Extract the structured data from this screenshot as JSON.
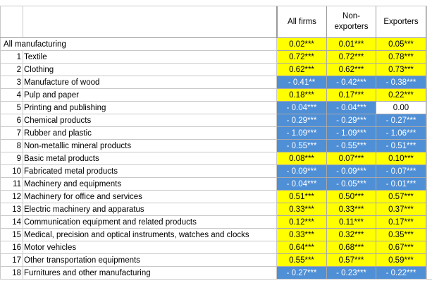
{
  "columns": [
    "All firms",
    "Non-exporters",
    "Exporters"
  ],
  "header_lines": {
    "all_firms": [
      "All firms"
    ],
    "non_exporters": [
      "Non-",
      "exporters"
    ],
    "exporters": [
      "Exporters"
    ]
  },
  "all_manufacturing": {
    "label": "All manufacturing",
    "values": [
      "0.02***",
      "0.01***",
      "0.05***"
    ],
    "signs": [
      "pos",
      "pos",
      "pos"
    ]
  },
  "rows": [
    {
      "num": "1",
      "label": "Textile",
      "values": [
        "0.72***",
        "0.72***",
        "0.78***"
      ],
      "signs": [
        "pos",
        "pos",
        "pos"
      ]
    },
    {
      "num": "2",
      "label": "Clothing",
      "values": [
        "0.62***",
        "0.62***",
        "0.73***"
      ],
      "signs": [
        "pos",
        "pos",
        "pos"
      ]
    },
    {
      "num": "3",
      "label": "Manufacture of wood",
      "values": [
        "- 0.41**",
        "- 0.42***",
        "- 0.38***"
      ],
      "signs": [
        "neg",
        "neg",
        "neg"
      ]
    },
    {
      "num": "4",
      "label": "Pulp and paper",
      "values": [
        "0.18***",
        "0.17***",
        "0.22***"
      ],
      "signs": [
        "pos",
        "pos",
        "pos"
      ]
    },
    {
      "num": "5",
      "label": "Printing and publishing",
      "values": [
        "- 0.04***",
        "- 0.04***",
        "0.00"
      ],
      "signs": [
        "neg",
        "neg",
        "zero"
      ]
    },
    {
      "num": "6",
      "label": "Chemical products",
      "values": [
        "- 0.29***",
        "- 0.29***",
        "- 0.27***"
      ],
      "signs": [
        "neg",
        "neg",
        "neg"
      ]
    },
    {
      "num": "7",
      "label": "Rubber and plastic",
      "values": [
        "- 1.09***",
        "- 1.09***",
        "- 1.06***"
      ],
      "signs": [
        "neg",
        "neg",
        "neg"
      ]
    },
    {
      "num": "8",
      "label": "Non-metallic mineral products",
      "values": [
        "- 0.55***",
        "- 0.55***",
        "- 0.51***"
      ],
      "signs": [
        "neg",
        "neg",
        "neg"
      ]
    },
    {
      "num": "9",
      "label": "Basic metal products",
      "values": [
        "0.08***",
        "0.07***",
        "0.10***"
      ],
      "signs": [
        "pos",
        "pos",
        "pos"
      ]
    },
    {
      "num": "10",
      "label": "Fabricated metal products",
      "values": [
        "- 0.09***",
        "- 0.09***",
        "- 0.07***"
      ],
      "signs": [
        "neg",
        "neg",
        "neg"
      ]
    },
    {
      "num": "11",
      "label": "Machinery and equipments",
      "values": [
        "- 0.04***",
        "- 0.05***",
        "- 0.01***"
      ],
      "signs": [
        "neg",
        "neg",
        "neg"
      ]
    },
    {
      "num": "12",
      "label": "Machinery for office and services",
      "values": [
        "0.51***",
        "0.50***",
        "0.57***"
      ],
      "signs": [
        "pos",
        "pos",
        "pos"
      ]
    },
    {
      "num": "13",
      "label": "Electric machinery and apparatus",
      "values": [
        "0.33***",
        "0.33***",
        "0.37***"
      ],
      "signs": [
        "pos",
        "pos",
        "pos"
      ]
    },
    {
      "num": "14",
      "label": "Communication equipment and related products",
      "values": [
        "0.12***",
        "0.11***",
        "0.17***"
      ],
      "signs": [
        "pos",
        "pos",
        "pos"
      ]
    },
    {
      "num": "15",
      "label": "Medical, precision and optical instruments, watches and clocks",
      "values": [
        "0.33***",
        "0.32***",
        "0.35***"
      ],
      "signs": [
        "pos",
        "pos",
        "pos"
      ]
    },
    {
      "num": "16",
      "label": "Motor vehicles",
      "values": [
        "0.64***",
        "0.68***",
        "0.67***"
      ],
      "signs": [
        "pos",
        "pos",
        "pos"
      ]
    },
    {
      "num": "17",
      "label": "Other transportation equipments",
      "values": [
        "0.55***",
        "0.57***",
        "0.59***"
      ],
      "signs": [
        "pos",
        "pos",
        "pos"
      ]
    },
    {
      "num": "18",
      "label": "Furnitures and other manufacturing",
      "values": [
        "- 0.27***",
        "- 0.23***",
        "- 0.22***"
      ],
      "signs": [
        "neg",
        "neg",
        "neg"
      ]
    }
  ],
  "colors": {
    "positive": "#ffff00",
    "negative": "#4f8fd6",
    "neutral": "#ffffff"
  }
}
